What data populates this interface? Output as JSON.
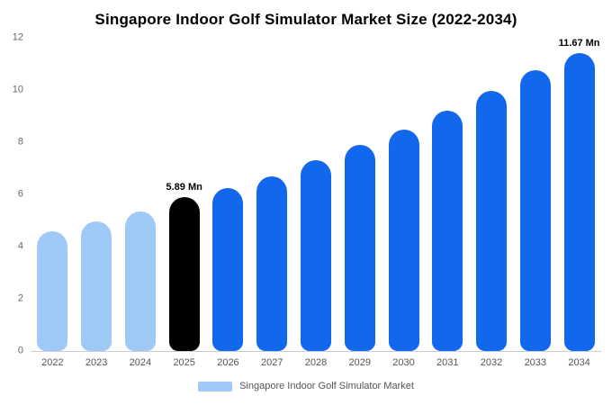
{
  "chart_data": {
    "type": "bar",
    "title": "Singapore Indoor Golf Simulator Market Size (2022-2034)",
    "categories": [
      "2022",
      "2023",
      "2024",
      "2025",
      "2026",
      "2027",
      "2028",
      "2029",
      "2030",
      "2031",
      "2032",
      "2033",
      "2034"
    ],
    "values": [
      4.6,
      4.95,
      5.35,
      5.89,
      6.25,
      6.7,
      7.3,
      7.9,
      8.5,
      9.2,
      9.95,
      10.75,
      11.67
    ],
    "unit": "Mn",
    "xlabel": "",
    "ylabel": "",
    "ylim": [
      0,
      12
    ],
    "yticks": [
      0,
      2,
      4,
      6,
      8,
      10,
      12
    ],
    "grid": false,
    "bar_colors": [
      "#9fc9f7",
      "#9fc9f7",
      "#9fc9f7",
      "#000000",
      "#1268ec",
      "#1268ec",
      "#1268ec",
      "#1268ec",
      "#1268ec",
      "#1268ec",
      "#1268ec",
      "#1268ec",
      "#1268ec"
    ],
    "annotations": [
      {
        "category": "2025",
        "text": "5.89 Mn"
      },
      {
        "category": "2034",
        "text": "11.67 Mn"
      }
    ],
    "legend_position": "bottom",
    "legend": [
      {
        "label": "Singapore Indoor Golf Simulator Market",
        "color": "#9fc9f7"
      }
    ]
  }
}
